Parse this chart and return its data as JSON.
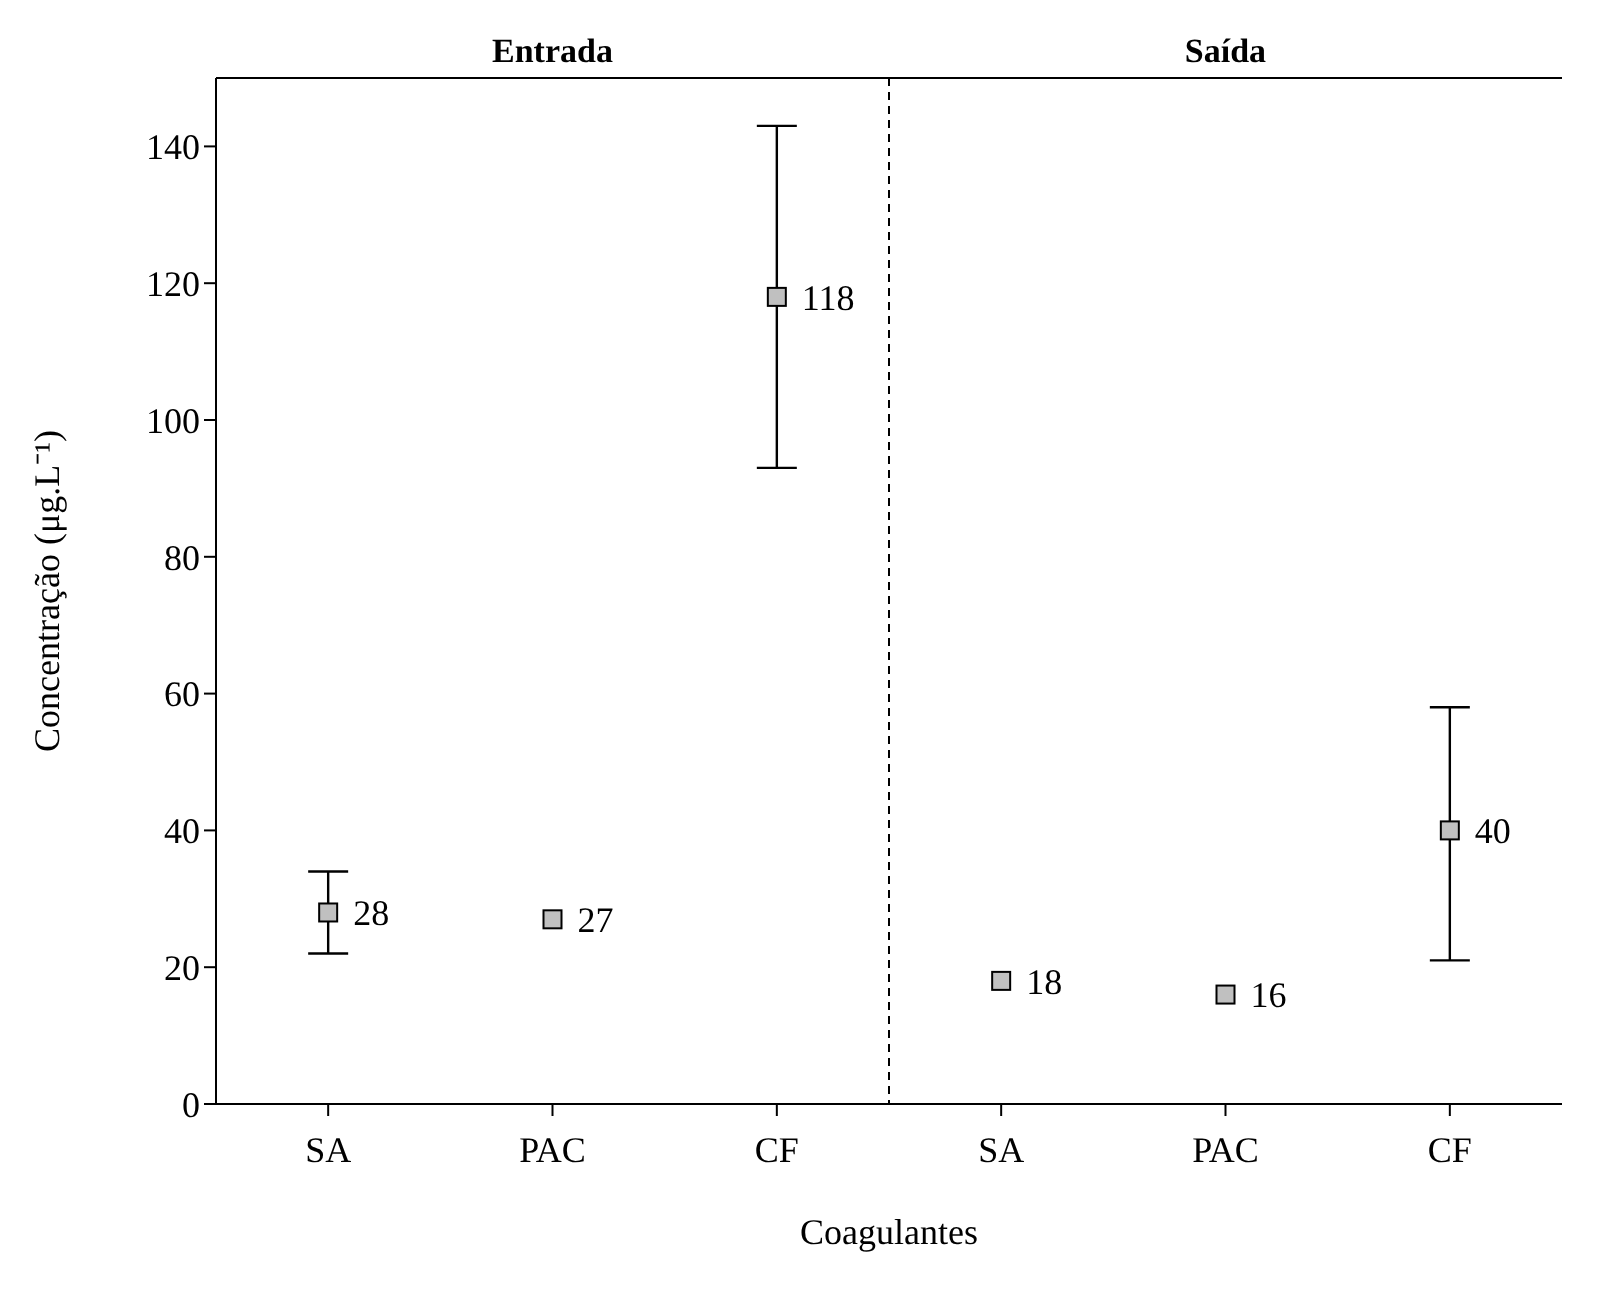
{
  "chart_data": {
    "type": "scatter",
    "xlabel": "Coagulantes",
    "ylabel": "Concentração (μg.L⁻¹)",
    "categories": [
      "SA",
      "PAC",
      "CF",
      "SA",
      "PAC",
      "CF"
    ],
    "values": [
      28,
      27,
      118,
      18,
      16,
      40
    ],
    "errors": [
      [
        22,
        34
      ],
      null,
      [
        93,
        143
      ],
      null,
      null,
      [
        21,
        58
      ]
    ],
    "color": "#c0c0c0",
    "marker": "square",
    "data_labels": true,
    "ylim": [
      0,
      150
    ],
    "yticks": [
      0,
      20,
      40,
      60,
      80,
      100,
      120,
      140
    ],
    "annotations": [
      "Entrada",
      "Saída"
    ],
    "grid": false,
    "legend": false
  }
}
